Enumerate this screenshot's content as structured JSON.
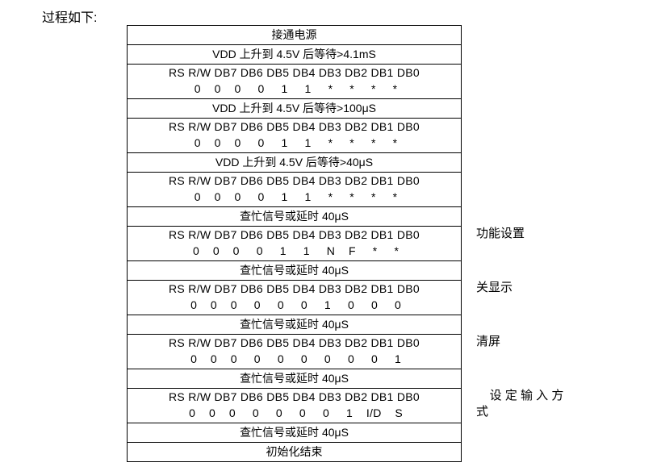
{
  "title": "过程如下:",
  "bit_header": "RS R/W DB7 DB6 DB5 DB4 DB3 DB2 DB1 DB0",
  "blocks": [
    {
      "type": "single",
      "text": "接通电源"
    },
    {
      "type": "single",
      "text": "VDD  上升到 4.5V 后等待>4.1mS"
    },
    {
      "type": "bits",
      "vals": " 0    0    0     0     1     1     *     *     *     *"
    },
    {
      "type": "single",
      "text": "VDD  上升到 4.5V 后等待>100μS"
    },
    {
      "type": "bits",
      "vals": " 0    0    0     0     1     1     *     *     *     *"
    },
    {
      "type": "single",
      "text": "VDD  上升到 4.5V 后等待>40μS"
    },
    {
      "type": "bits",
      "vals": " 0    0    0     0     1     1     *     *     *     *"
    },
    {
      "type": "single",
      "text": "查忙信号或延时 40μS"
    },
    {
      "type": "bits",
      "vals": " 0    0    0     0     1     1     N    F     *     *",
      "side": "功能设置"
    },
    {
      "type": "single",
      "text": "查忙信号或延时 40μS"
    },
    {
      "type": "bits",
      "vals": " 0    0    0     0     0     0     1     0     0     0",
      "side": "关显示"
    },
    {
      "type": "single",
      "text": "查忙信号或延时 40μS"
    },
    {
      "type": "bits",
      "vals": " 0    0    0     0     0     0     0     0     0     1",
      "side": "清屏"
    },
    {
      "type": "single",
      "text": "查忙信号或延时 40μS"
    },
    {
      "type": "bits",
      "vals": " 0    0    0     0     0     0     0     1    I/D    S",
      "side": "    设 定 输 入 方\n式"
    },
    {
      "type": "single",
      "text": "查忙信号或延时 40μS"
    },
    {
      "type": "single",
      "text": "初始化结束"
    }
  ]
}
